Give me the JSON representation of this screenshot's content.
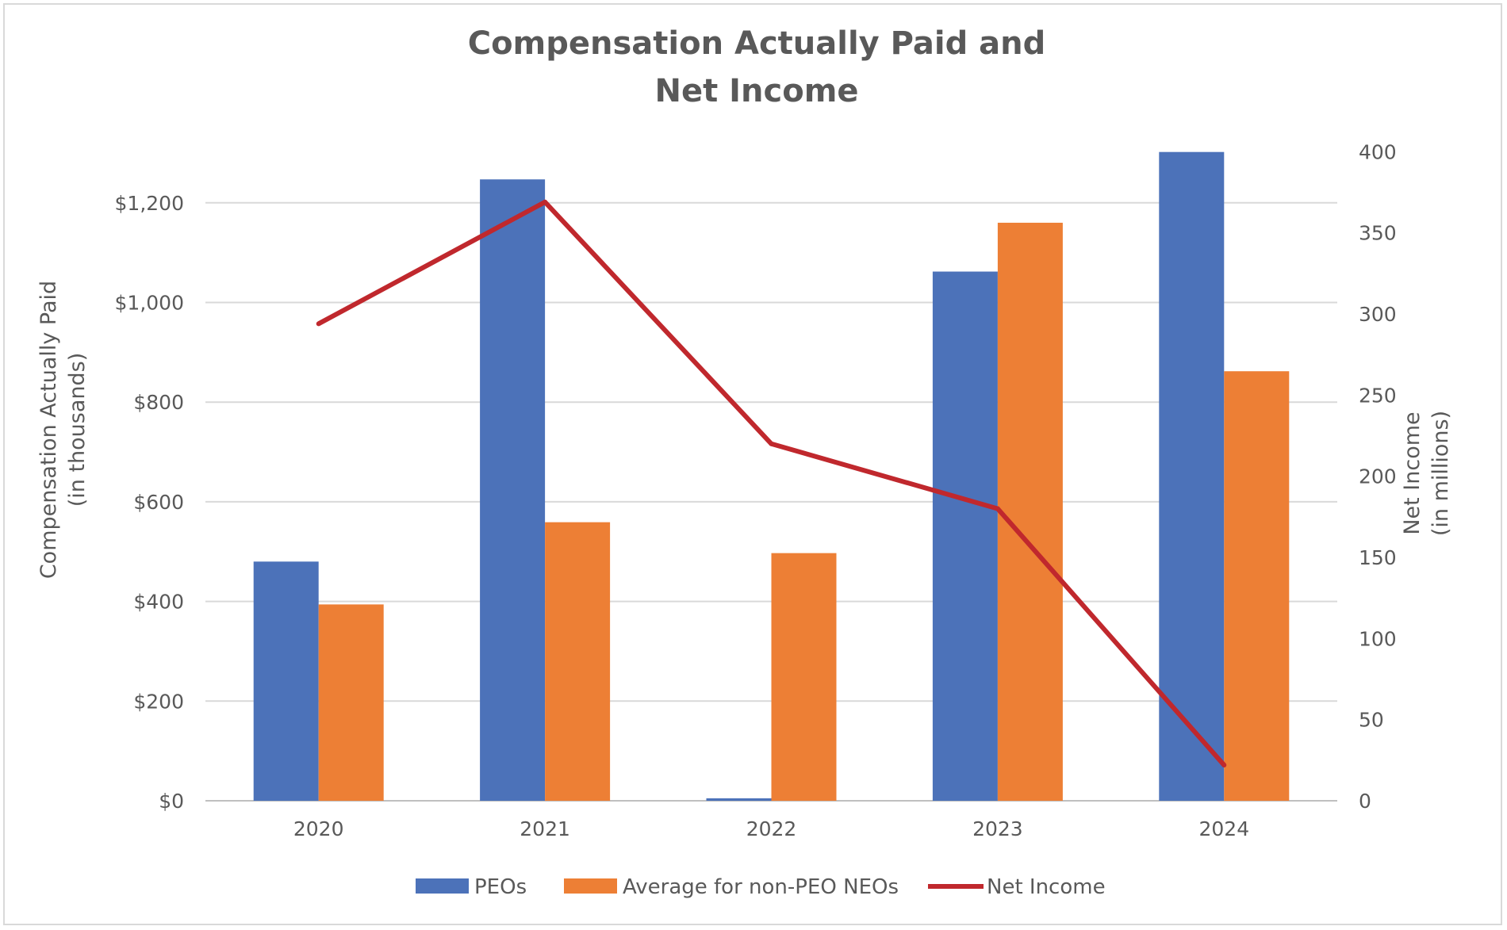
{
  "chart_data": {
    "type": "bar",
    "title": [
      "Compensation Actually Paid and",
      "Net Income"
    ],
    "categories": [
      "2020",
      "2021",
      "2022",
      "2023",
      "2024"
    ],
    "series": [
      {
        "name": "PEOs",
        "type": "bar",
        "axis": "left",
        "color": "#4c72b9",
        "values": [
          480,
          1247,
          5,
          1062,
          1302
        ]
      },
      {
        "name": "Average for non-PEO NEOs",
        "type": "bar",
        "axis": "left",
        "color": "#ed7f35",
        "values": [
          394,
          559,
          497,
          1160,
          862
        ]
      },
      {
        "name": "Net Income",
        "type": "line",
        "axis": "right",
        "color": "#c0282d",
        "values": [
          294,
          369,
          220,
          180,
          22
        ]
      }
    ],
    "y_left": {
      "label": [
        "Compensation Actually Paid",
        "(in thousands)"
      ],
      "range": [
        0,
        1300
      ],
      "ticks": [
        0,
        200,
        400,
        600,
        800,
        1000,
        1200
      ],
      "tick_labels": [
        "$0",
        "$200",
        "$400",
        "$600",
        "$800",
        "$1,000",
        "$1,200"
      ]
    },
    "y_right": {
      "label": [
        "Net Income",
        "(in millions)"
      ],
      "range": [
        0,
        400
      ],
      "ticks": [
        0,
        50,
        100,
        150,
        200,
        250,
        300,
        350,
        400
      ],
      "tick_labels": [
        "0",
        "50",
        "100",
        "150",
        "200",
        "250",
        "300",
        "350",
        "400"
      ]
    },
    "grid": true,
    "legend_position": "bottom"
  }
}
